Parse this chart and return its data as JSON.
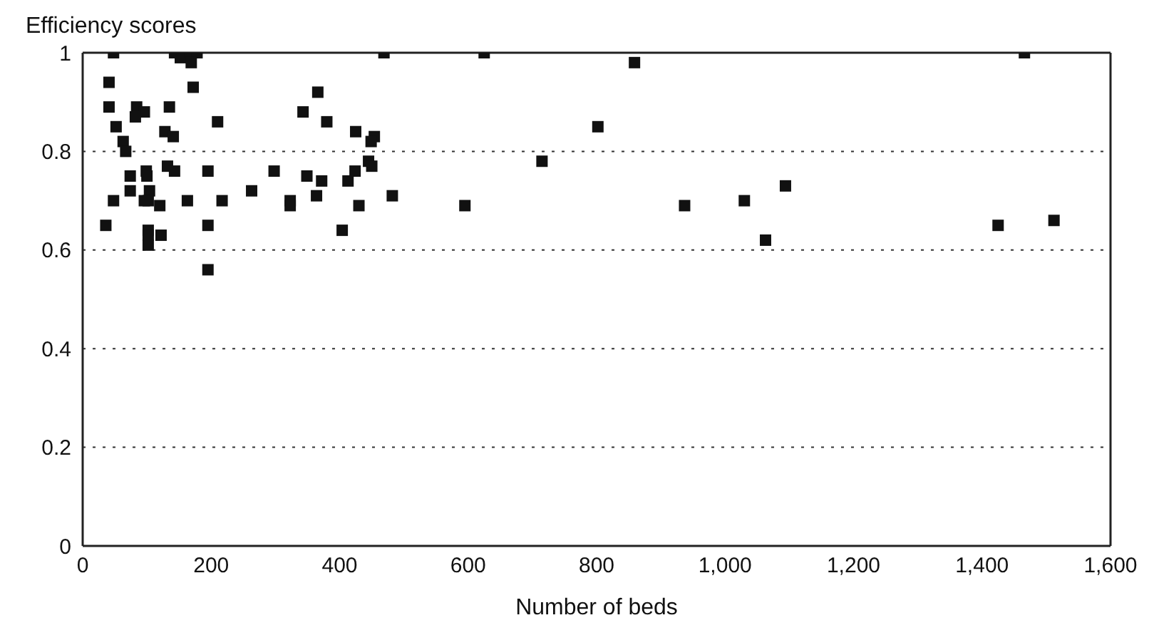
{
  "chart_data": {
    "type": "scatter",
    "ylabel": "Efficiency scores",
    "xlabel": "Number of beds",
    "x": [
      48,
      143,
      152,
      167,
      178,
      169,
      469,
      41,
      172,
      366,
      41,
      84,
      96,
      82,
      135,
      343,
      380,
      210,
      52,
      128,
      141,
      425,
      454,
      449,
      63,
      67,
      445,
      450,
      132,
      143,
      74,
      99,
      100,
      195,
      298,
      349,
      372,
      424,
      413,
      74,
      104,
      263,
      48,
      102,
      96,
      120,
      163,
      217,
      323,
      323,
      364,
      430,
      482,
      36,
      102,
      102,
      122,
      195,
      404,
      102,
      195,
      625,
      859,
      802,
      715,
      595,
      937,
      1030,
      1063,
      1466,
      1094,
      1425,
      1512
    ],
    "values": [
      1.0,
      1.0,
      0.99,
      1.0,
      1.0,
      0.98,
      1.0,
      0.94,
      0.93,
      0.92,
      0.89,
      0.89,
      0.88,
      0.87,
      0.89,
      0.88,
      0.86,
      0.86,
      0.85,
      0.84,
      0.83,
      0.84,
      0.83,
      0.82,
      0.82,
      0.8,
      0.78,
      0.77,
      0.77,
      0.76,
      0.75,
      0.76,
      0.75,
      0.76,
      0.76,
      0.75,
      0.74,
      0.76,
      0.74,
      0.72,
      0.72,
      0.72,
      0.7,
      0.7,
      0.7,
      0.69,
      0.7,
      0.7,
      0.7,
      0.69,
      0.71,
      0.69,
      0.71,
      0.65,
      0.64,
      0.63,
      0.63,
      0.65,
      0.64,
      0.61,
      0.56,
      1.0,
      0.98,
      0.85,
      0.78,
      0.69,
      0.69,
      0.7,
      0.62,
      1.0,
      0.73,
      0.65,
      0.66
    ],
    "color": "#111111",
    "marker": "square",
    "xlim": [
      0,
      1600
    ],
    "xticks": [
      0,
      200,
      400,
      600,
      800,
      {
        "value": 1000,
        "label": "1,000"
      },
      {
        "value": 1200,
        "label": "1,200"
      },
      {
        "value": 1400,
        "label": "1,400"
      },
      {
        "value": 1600,
        "label": "1,600"
      }
    ],
    "ylim": [
      0,
      1
    ],
    "yticks": [
      0,
      0.2,
      0.4,
      0.6,
      0.8,
      1
    ],
    "grid": "y"
  }
}
